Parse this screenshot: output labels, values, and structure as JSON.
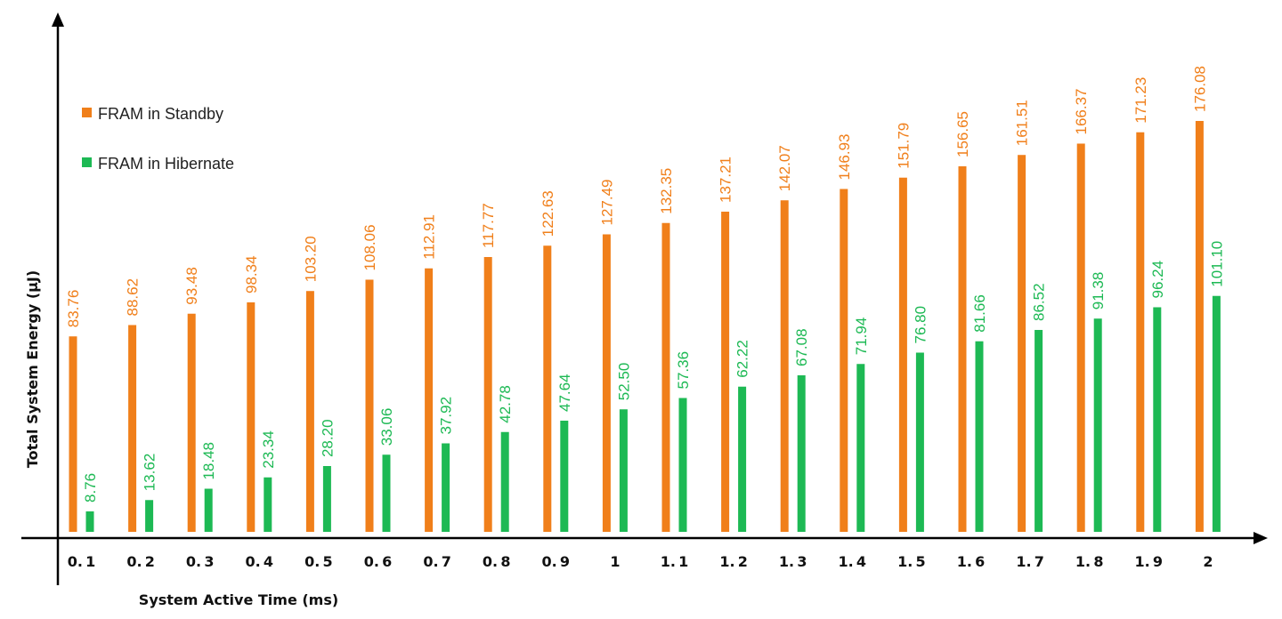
{
  "chart_data": {
    "type": "bar",
    "xlabel": "System Active Time (ms)",
    "ylabel": "Total System Energy (μJ)",
    "categories": [
      "0.1",
      "0.2",
      "0.3",
      "0.4",
      "0.5",
      "0.6",
      "0.7",
      "0.8",
      "0.9",
      "1",
      "1.1",
      "1.2",
      "1.3",
      "1.4",
      "1.5",
      "1.6",
      "1.7",
      "1.8",
      "1.9",
      "2"
    ],
    "series": [
      {
        "name": "FRAM in Standby",
        "color": "#F07F1A",
        "values": [
          83.76,
          88.62,
          93.48,
          98.34,
          103.2,
          108.06,
          112.91,
          117.77,
          122.63,
          127.49,
          132.35,
          137.21,
          142.07,
          146.93,
          151.79,
          156.65,
          161.51,
          166.37,
          171.23,
          176.08
        ],
        "labels": [
          "83.76",
          "88.62",
          "93.48",
          "98.34",
          "103.20",
          "108.06",
          "112.91",
          "117.77",
          "122.63",
          "127.49",
          "132.35",
          "137.21",
          "142.07",
          "146.93",
          "151.79",
          "156.65",
          "161.51",
          "166.37",
          "171.23",
          "176.08"
        ]
      },
      {
        "name": "FRAM in Hibernate",
        "color": "#1DB954",
        "values": [
          8.76,
          13.62,
          18.48,
          23.34,
          28.2,
          33.06,
          37.92,
          42.78,
          47.64,
          52.5,
          57.36,
          62.22,
          67.08,
          71.94,
          76.8,
          81.66,
          86.52,
          91.38,
          96.24,
          101.1
        ],
        "labels": [
          "8.76",
          "13.62",
          "18.48",
          "23.34",
          "28.20",
          "33.06",
          "37.92",
          "42.78",
          "47.64",
          "52.50",
          "57.36",
          "62.22",
          "67.08",
          "71.94",
          "76.80",
          "81.66",
          "86.52",
          "91.38",
          "96.24",
          "101.10"
        ]
      }
    ],
    "ylim": [
      0,
      200
    ],
    "grid": false,
    "legend_position": "top-left"
  }
}
